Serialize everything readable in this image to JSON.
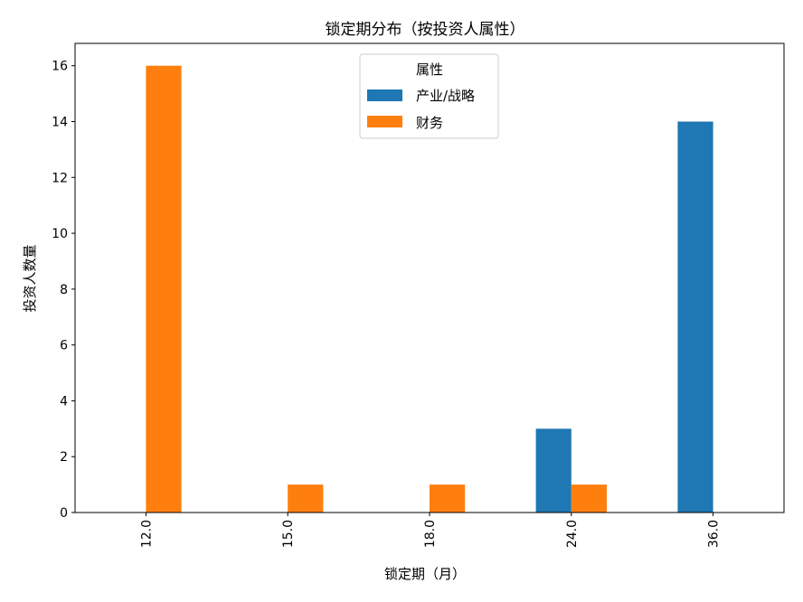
{
  "chart_data": {
    "type": "bar",
    "title": "锁定期分布（按投资人属性）",
    "xlabel": "锁定期（月）",
    "ylabel": "投资人数量",
    "categories": [
      "12.0",
      "15.0",
      "18.0",
      "24.0",
      "36.0"
    ],
    "series": [
      {
        "name": "产业/战略",
        "color": "#1f77b4",
        "values": [
          0,
          0,
          0,
          3,
          14
        ]
      },
      {
        "name": "财务",
        "color": "#ff7f0e",
        "values": [
          16,
          1,
          1,
          1,
          0
        ]
      }
    ],
    "ylim": [
      0,
      16.8
    ],
    "yticks": [
      "0",
      "2",
      "4",
      "6",
      "8",
      "10",
      "12",
      "14",
      "16"
    ],
    "grid": false,
    "legend": {
      "title": "属性",
      "placement": "top-center"
    }
  }
}
